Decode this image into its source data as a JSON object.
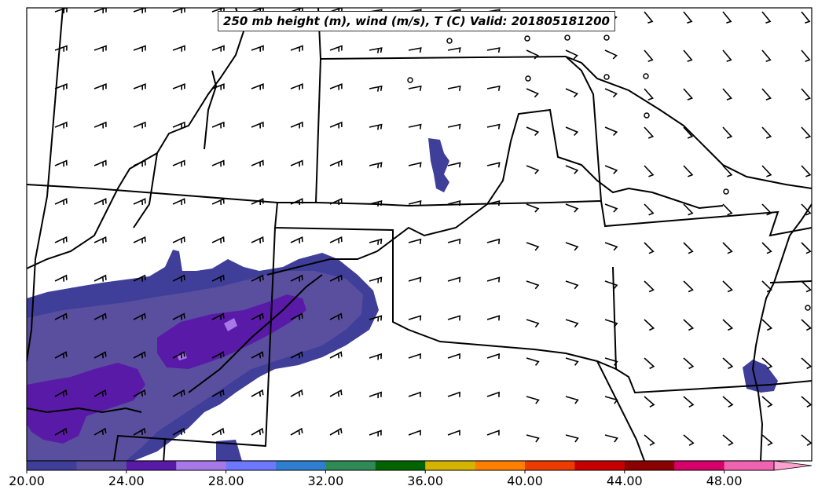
{
  "map": {
    "title": "250 mb height (m), wind (m/s), T (C) Valid: 201805181200"
  },
  "colorbar": {
    "tick_labels": [
      "20.00",
      "24.00",
      "28.00",
      "32.00",
      "36.00",
      "40.00",
      "44.00",
      "48.00"
    ],
    "colors": [
      "#3f3f9a",
      "#5a4f9e",
      "#5a1aa8",
      "#a678e8",
      "#6e78ff",
      "#2f7fd0",
      "#2e8b57",
      "#006400",
      "#d4b400",
      "#ff8000",
      "#ee3b00",
      "#c80000",
      "#8b0000",
      "#d8006a",
      "#f063b0",
      "#ffa0d0"
    ]
  },
  "layers": {
    "fill_colors": {
      "band1": "#3f3f9a",
      "band2": "#5a4f9e",
      "band3": "#5a1aa8",
      "band4": "#a678e8"
    },
    "wind_barb_icon": "wind-barb-icon",
    "calm_icon": "calm-circle-icon"
  }
}
